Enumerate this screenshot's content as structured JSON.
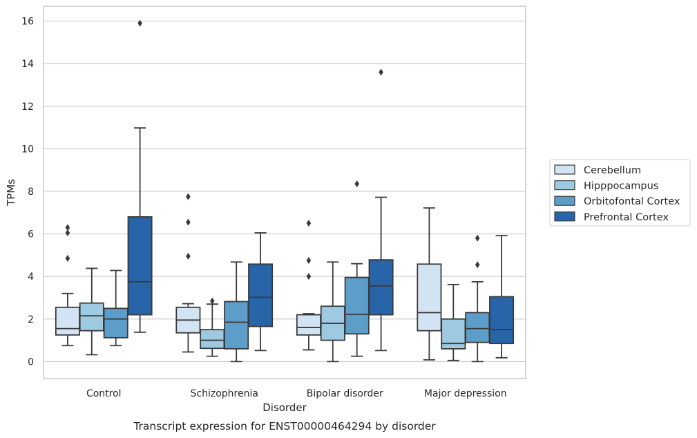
{
  "chart_data": {
    "type": "boxplot",
    "caption": "Transcript expression for ENST00000464294 by disorder",
    "xlabel": "Disorder",
    "ylabel": "TPMs",
    "ylim": [
      -0.8,
      16.7
    ],
    "yticks": [
      0,
      2,
      4,
      6,
      8,
      10,
      12,
      14,
      16
    ],
    "grid": "horizontal",
    "legend_position": "right",
    "categories": [
      "Control",
      "Schizophrenia",
      "Bipolar disorder",
      "Major depression"
    ],
    "series": [
      {
        "name": "Cerebellum",
        "color": "#d2e3f3",
        "boxes": [
          {
            "whislo": 0.75,
            "q1": 1.25,
            "med": 1.55,
            "q3": 2.55,
            "whishi": 3.2,
            "fliers": [
              4.85,
              6.05,
              6.3
            ]
          },
          {
            "whislo": 0.45,
            "q1": 1.35,
            "med": 1.95,
            "q3": 2.55,
            "whishi": 2.72,
            "fliers": [
              4.95,
              6.55,
              7.75
            ]
          },
          {
            "whislo": 0.55,
            "q1": 1.25,
            "med": 1.6,
            "q3": 2.2,
            "whishi": 2.25,
            "fliers": [
              4.0,
              4.75,
              6.5
            ]
          },
          {
            "whislo": 0.08,
            "q1": 1.45,
            "med": 2.3,
            "q3": 4.58,
            "whishi": 7.22,
            "fliers": []
          }
        ]
      },
      {
        "name": "Hipppocampus",
        "color": "#9ecae1",
        "boxes": [
          {
            "whislo": 0.32,
            "q1": 1.45,
            "med": 2.15,
            "q3": 2.75,
            "whishi": 4.38,
            "fliers": []
          },
          {
            "whislo": 0.25,
            "q1": 0.62,
            "med": 1.0,
            "q3": 1.5,
            "whishi": 2.7,
            "fliers": [
              2.85
            ]
          },
          {
            "whislo": 0.0,
            "q1": 1.0,
            "med": 1.8,
            "q3": 2.6,
            "whishi": 4.68,
            "fliers": []
          },
          {
            "whislo": 0.05,
            "q1": 0.6,
            "med": 0.85,
            "q3": 2.0,
            "whishi": 3.62,
            "fliers": []
          }
        ]
      },
      {
        "name": "Orbitofontal Cortex",
        "color": "#5d9dc9",
        "boxes": [
          {
            "whislo": 0.75,
            "q1": 1.12,
            "med": 2.0,
            "q3": 2.5,
            "whishi": 4.28,
            "fliers": []
          },
          {
            "whislo": 0.0,
            "q1": 0.6,
            "med": 1.85,
            "q3": 2.82,
            "whishi": 4.68,
            "fliers": []
          },
          {
            "whislo": 0.25,
            "q1": 1.3,
            "med": 2.22,
            "q3": 3.95,
            "whishi": 4.6,
            "fliers": [
              8.35
            ]
          },
          {
            "whislo": 0.0,
            "q1": 0.9,
            "med": 1.55,
            "q3": 2.3,
            "whishi": 3.75,
            "fliers": [
              4.55,
              5.8
            ]
          }
        ]
      },
      {
        "name": "Prefrontal Cortex",
        "color": "#2764a8",
        "boxes": [
          {
            "whislo": 1.38,
            "q1": 2.2,
            "med": 3.75,
            "q3": 6.8,
            "whishi": 10.98,
            "fliers": [
              15.9
            ]
          },
          {
            "whislo": 0.52,
            "q1": 1.65,
            "med": 3.02,
            "q3": 4.58,
            "whishi": 6.05,
            "fliers": []
          },
          {
            "whislo": 0.52,
            "q1": 2.2,
            "med": 3.55,
            "q3": 4.78,
            "whishi": 7.72,
            "fliers": [
              13.6
            ]
          },
          {
            "whislo": 0.18,
            "q1": 0.85,
            "med": 1.5,
            "q3": 3.05,
            "whishi": 5.92,
            "fliers": []
          }
        ]
      }
    ]
  }
}
